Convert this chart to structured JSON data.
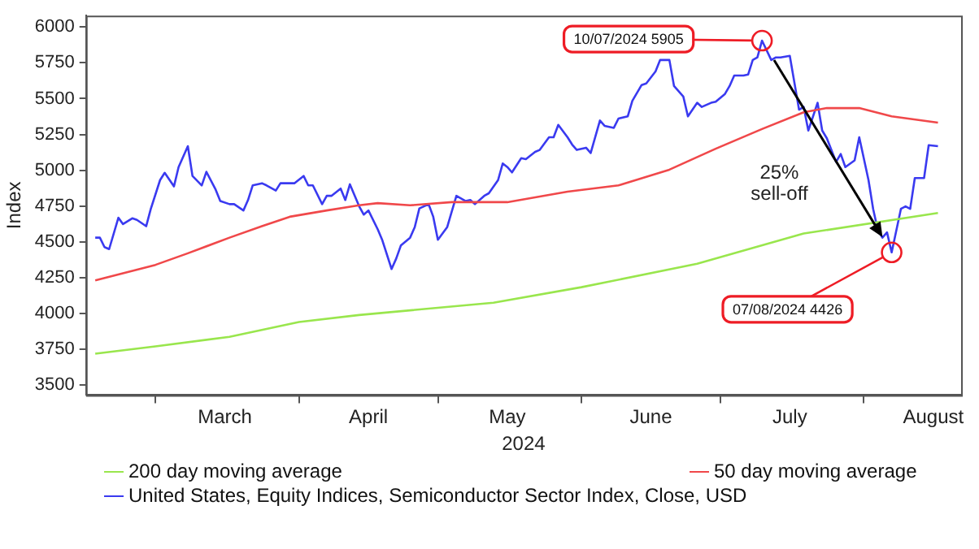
{
  "chart_data": {
    "type": "line",
    "xlabel": "2024",
    "ylabel": "Index",
    "xlim": [
      "2024-02-15",
      "2024-08-22"
    ],
    "xticks": [
      {
        "value": "2024-03-01",
        "label": null
      },
      {
        "value": "2024-03-16",
        "label": "March"
      },
      {
        "value": "2024-04-01",
        "label": null
      },
      {
        "value": "2024-04-16",
        "label": "April"
      },
      {
        "value": "2024-05-01",
        "label": null
      },
      {
        "value": "2024-05-16",
        "label": "May"
      },
      {
        "value": "2024-06-01",
        "label": null
      },
      {
        "value": "2024-06-16",
        "label": "June"
      },
      {
        "value": "2024-07-01",
        "label": null
      },
      {
        "value": "2024-07-16",
        "label": "July"
      },
      {
        "value": "2024-08-01",
        "label": null
      },
      {
        "value": "2024-08-16",
        "label": "August"
      }
    ],
    "ylim": [
      3430,
      6080
    ],
    "yticks": [
      3500,
      3750,
      4000,
      4250,
      4500,
      4750,
      5000,
      5250,
      5500,
      5750,
      6000
    ],
    "grid": false,
    "legend": "bottom",
    "series": [
      {
        "name": "200 day moving average",
        "color": "#99e64d",
        "x": [
          "2024-02-17",
          "2024-03-01",
          "2024-03-17",
          "2024-04-01",
          "2024-04-14",
          "2024-05-13",
          "2024-06-01",
          "2024-06-26",
          "2024-07-19",
          "2024-08-17"
        ],
        "values": [
          3719,
          3770,
          3836,
          3940,
          3989,
          4075,
          4183,
          4347,
          4558,
          4701
        ]
      },
      {
        "name": "50 day moving average",
        "color": "#f0484a",
        "x": [
          "2024-02-17",
          "2024-03-01",
          "2024-03-08",
          "2024-03-17",
          "2024-03-24",
          "2024-03-30",
          "2024-04-07",
          "2024-04-14",
          "2024-04-18",
          "2024-04-25",
          "2024-05-04",
          "2024-05-16",
          "2024-05-29",
          "2024-06-09",
          "2024-06-20",
          "2024-06-30",
          "2024-07-10",
          "2024-07-19",
          "2024-07-24",
          "2024-07-31",
          "2024-08-07",
          "2024-08-17"
        ],
        "values": [
          4230,
          4339,
          4420,
          4529,
          4609,
          4675,
          4719,
          4755,
          4770,
          4755,
          4777,
          4777,
          4850,
          4894,
          5004,
          5150,
          5288,
          5405,
          5434,
          5434,
          5376,
          5332
        ]
      },
      {
        "name": "United States, Equity Indices, Semiconductor Sector Index, Close, USD",
        "color": "#3a3af0",
        "x": [
          "2024-02-17",
          "2024-02-18",
          "2024-02-19",
          "2024-02-20",
          "2024-02-22",
          "2024-02-23",
          "2024-02-25",
          "2024-02-26",
          "2024-02-28",
          "2024-02-29",
          "2024-03-02",
          "2024-03-03",
          "2024-03-05",
          "2024-03-06",
          "2024-03-08",
          "2024-03-09",
          "2024-03-11",
          "2024-03-12",
          "2024-03-14",
          "2024-03-15",
          "2024-03-17",
          "2024-03-18",
          "2024-03-20",
          "2024-03-21",
          "2024-03-22",
          "2024-03-24",
          "2024-03-25",
          "2024-03-27",
          "2024-03-28",
          "2024-03-30",
          "2024-03-31",
          "2024-04-02",
          "2024-04-03",
          "2024-04-04",
          "2024-04-06",
          "2024-04-07",
          "2024-04-08",
          "2024-04-10",
          "2024-04-11",
          "2024-04-12",
          "2024-04-14",
          "2024-04-15",
          "2024-04-16",
          "2024-04-18",
          "2024-04-19",
          "2024-04-21",
          "2024-04-22",
          "2024-04-23",
          "2024-04-25",
          "2024-04-26",
          "2024-04-27",
          "2024-04-29",
          "2024-04-30",
          "2024-05-01",
          "2024-05-03",
          "2024-05-04",
          "2024-05-05",
          "2024-05-07",
          "2024-05-08",
          "2024-05-09",
          "2024-05-11",
          "2024-05-12",
          "2024-05-14",
          "2024-05-15",
          "2024-05-16",
          "2024-05-17",
          "2024-05-19",
          "2024-05-20",
          "2024-05-22",
          "2024-05-23",
          "2024-05-25",
          "2024-05-26",
          "2024-05-27",
          "2024-05-29",
          "2024-05-30",
          "2024-05-31",
          "2024-06-02",
          "2024-06-03",
          "2024-06-05",
          "2024-06-06",
          "2024-06-08",
          "2024-06-09",
          "2024-06-11",
          "2024-06-12",
          "2024-06-14",
          "2024-06-15",
          "2024-06-17",
          "2024-06-18",
          "2024-06-20",
          "2024-06-21",
          "2024-06-23",
          "2024-06-24",
          "2024-06-26",
          "2024-06-27",
          "2024-06-29",
          "2024-06-30",
          "2024-07-02",
          "2024-07-03",
          "2024-07-04",
          "2024-07-06",
          "2024-07-07",
          "2024-07-08",
          "2024-07-09",
          "2024-07-10",
          "2024-07-12",
          "2024-07-13",
          "2024-07-14",
          "2024-07-16",
          "2024-07-18",
          "2024-07-19",
          "2024-07-20",
          "2024-07-22",
          "2024-07-23",
          "2024-07-24",
          "2024-07-26",
          "2024-07-27",
          "2024-07-28",
          "2024-07-30",
          "2024-07-31",
          "2024-08-02",
          "2024-08-03",
          "2024-08-04",
          "2024-08-05",
          "2024-08-06",
          "2024-08-07",
          "2024-08-09",
          "2024-08-10",
          "2024-08-11",
          "2024-08-12",
          "2024-08-14",
          "2024-08-15",
          "2024-08-17"
        ],
        "values": [
          4529,
          4529,
          4463,
          4449,
          4668,
          4624,
          4664,
          4653,
          4609,
          4730,
          4931,
          4982,
          4887,
          5022,
          5168,
          4960,
          4894,
          4989,
          4865,
          4785,
          4763,
          4763,
          4719,
          4792,
          4894,
          4909,
          4894,
          4858,
          4909,
          4909,
          4909,
          4960,
          4894,
          4894,
          4763,
          4821,
          4821,
          4872,
          4792,
          4902,
          4748,
          4690,
          4719,
          4588,
          4511,
          4310,
          4383,
          4474,
          4529,
          4602,
          4733,
          4763,
          4675,
          4514,
          4602,
          4712,
          4821,
          4785,
          4792,
          4763,
          4821,
          4839,
          4931,
          5047,
          5022,
          4985,
          5084,
          5077,
          5128,
          5142,
          5230,
          5230,
          5317,
          5230,
          5179,
          5142,
          5157,
          5120,
          5347,
          5310,
          5296,
          5361,
          5376,
          5485,
          5595,
          5606,
          5690,
          5770,
          5770,
          5588,
          5515,
          5376,
          5471,
          5442,
          5471,
          5478,
          5533,
          5588,
          5661,
          5661,
          5668,
          5770,
          5788,
          5905,
          5770,
          5788,
          5788,
          5799,
          5423,
          5442,
          5277,
          5471,
          5277,
          5223,
          5058,
          5113,
          5022,
          5069,
          5230,
          4931,
          4730,
          4584,
          4529,
          4566,
          4426,
          4730,
          4748,
          4730,
          4945,
          4945,
          5175,
          5168
        ]
      }
    ],
    "annotations": [
      {
        "text": "10/07/2024 5905",
        "x": "2024-07-10",
        "y": 5905
      },
      {
        "text": "07/08/2024 4426",
        "x": "2024-08-07",
        "y": 4426
      },
      "25% sell-off"
    ]
  }
}
